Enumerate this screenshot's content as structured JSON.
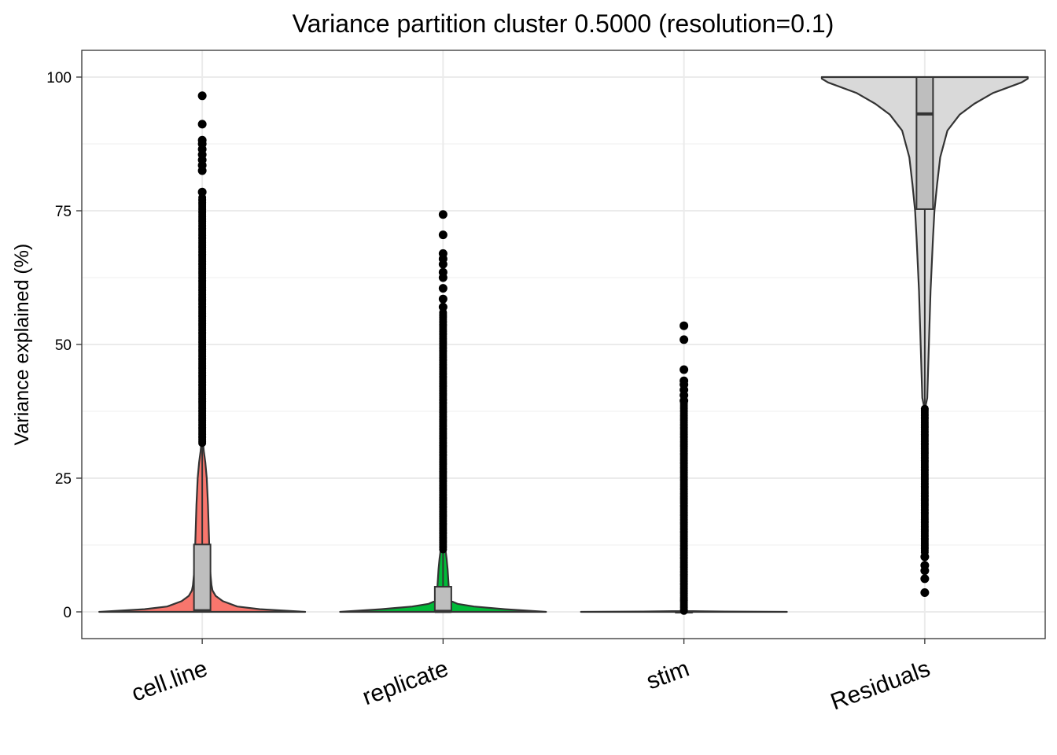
{
  "chart_data": {
    "type": "violin",
    "title": "Variance partition cluster 0.5000 (resolution=0.1)",
    "xlabel": "",
    "ylabel": "Variance explained (%)",
    "ylim": [
      -5,
      105
    ],
    "yticks": [
      0,
      25,
      50,
      75,
      100
    ],
    "grid": true,
    "legend": "none",
    "categories": [
      "cell.line",
      "replicate",
      "stim",
      "Residuals"
    ],
    "series": [
      {
        "category": "cell.line",
        "color": "#F8766D",
        "box": {
          "q1": 0.0,
          "median": 0.2,
          "q3": 12.6,
          "whisker_low": 0.0,
          "whisker_high": 31.5
        },
        "outliers_dense_range": [
          31.5,
          77.5
        ],
        "outliers": [
          78.5,
          82.5,
          83.5,
          84.5,
          85.5,
          86.5,
          87.5,
          88.2,
          91.2,
          96.5
        ],
        "violin": [
          [
            0,
            0.5
          ],
          [
            0.5,
            0.28
          ],
          [
            1,
            0.17
          ],
          [
            2,
            0.1
          ],
          [
            3,
            0.065
          ],
          [
            4,
            0.05
          ],
          [
            5,
            0.045
          ],
          [
            7,
            0.04
          ],
          [
            10,
            0.036
          ],
          [
            15,
            0.032
          ],
          [
            20,
            0.028
          ],
          [
            25,
            0.022
          ],
          [
            28,
            0.015
          ],
          [
            30,
            0.008
          ],
          [
            31.5,
            0.004
          ]
        ]
      },
      {
        "category": "replicate",
        "color": "#00BA38",
        "box": {
          "q1": 0.0,
          "median": 0.1,
          "q3": 4.7,
          "whisker_low": 0.0,
          "whisker_high": 11.5
        },
        "outliers_dense_range": [
          11.5,
          56
        ],
        "outliers": [
          57,
          58.5,
          60.5,
          62.5,
          63.5,
          65,
          66,
          67,
          70.5,
          74.3
        ],
        "violin": [
          [
            0,
            0.5
          ],
          [
            0.5,
            0.3
          ],
          [
            1,
            0.15
          ],
          [
            1.5,
            0.07
          ],
          [
            2,
            0.04
          ],
          [
            3,
            0.03
          ],
          [
            5,
            0.027
          ],
          [
            8,
            0.022
          ],
          [
            10,
            0.017
          ],
          [
            11.5,
            0.012
          ]
        ]
      },
      {
        "category": "stim",
        "color": "#619CFF",
        "box": {
          "q1": 0.0,
          "median": 0.0,
          "q3": 0.1,
          "whisker_low": 0.0,
          "whisker_high": 0.2
        },
        "outliers_dense_range": [
          0,
          39
        ],
        "outliers": [
          39.5,
          40.5,
          41.5,
          42.5,
          43.2,
          45.3,
          50.9,
          53.5
        ],
        "violin": [
          [
            0,
            0.5
          ],
          [
            0.05,
            0.2
          ],
          [
            0.15,
            0.02
          ],
          [
            0.2,
            0.005
          ]
        ]
      },
      {
        "category": "Residuals",
        "color": "#D9D9D9",
        "box": {
          "q1": 75.3,
          "median": 93.1,
          "q3": 100.0,
          "whisker_low": 38.5,
          "whisker_high": 100.0
        },
        "outliers_dense_range": [
          11,
          38
        ],
        "outliers": [
          3.6,
          6.2,
          7.7,
          8.7,
          10.3
        ],
        "violin": [
          [
            38.5,
            0.004
          ],
          [
            40,
            0.012
          ],
          [
            45,
            0.016
          ],
          [
            50,
            0.02
          ],
          [
            55,
            0.024
          ],
          [
            60,
            0.028
          ],
          [
            65,
            0.034
          ],
          [
            70,
            0.04
          ],
          [
            75,
            0.047
          ],
          [
            80,
            0.06
          ],
          [
            85,
            0.075
          ],
          [
            90,
            0.11
          ],
          [
            93,
            0.17
          ],
          [
            95,
            0.24
          ],
          [
            97,
            0.33
          ],
          [
            99,
            0.47
          ],
          [
            99.7,
            0.5
          ],
          [
            100,
            0.5
          ]
        ]
      }
    ]
  }
}
